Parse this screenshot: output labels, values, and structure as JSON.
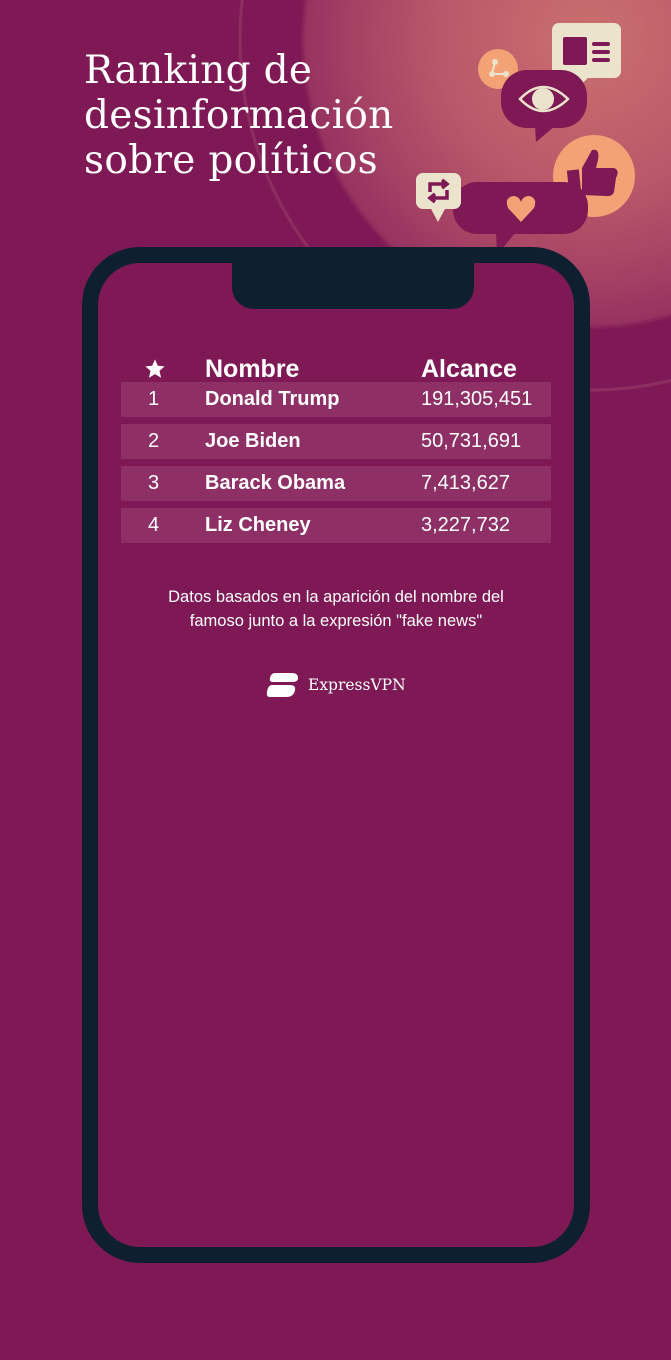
{
  "title_lines": [
    "Ranking de",
    "desinformación",
    "sobre políticos"
  ],
  "table": {
    "headers": {
      "rank_icon": "star-icon",
      "name": "Nombre",
      "reach": "Alcance"
    },
    "rows": [
      {
        "rank": "1",
        "name": "Donald Trump",
        "reach": "191,305,451"
      },
      {
        "rank": "2",
        "name": "Joe Biden",
        "reach": "50,731,691"
      },
      {
        "rank": "3",
        "name": "Barack Obama",
        "reach": "7,413,627"
      },
      {
        "rank": "4",
        "name": "Liz Cheney",
        "reach": "3,227,732"
      }
    ]
  },
  "note_lines": [
    "Datos basados en la aparición del nombre del",
    "famoso junto a la expresión \"fake news\""
  ],
  "brand": "ExpressVPN",
  "colors": {
    "background": "#7e1955",
    "phone_frame": "#0e2030",
    "accent_orange": "#f2a275",
    "cream": "#ebe3cb"
  }
}
